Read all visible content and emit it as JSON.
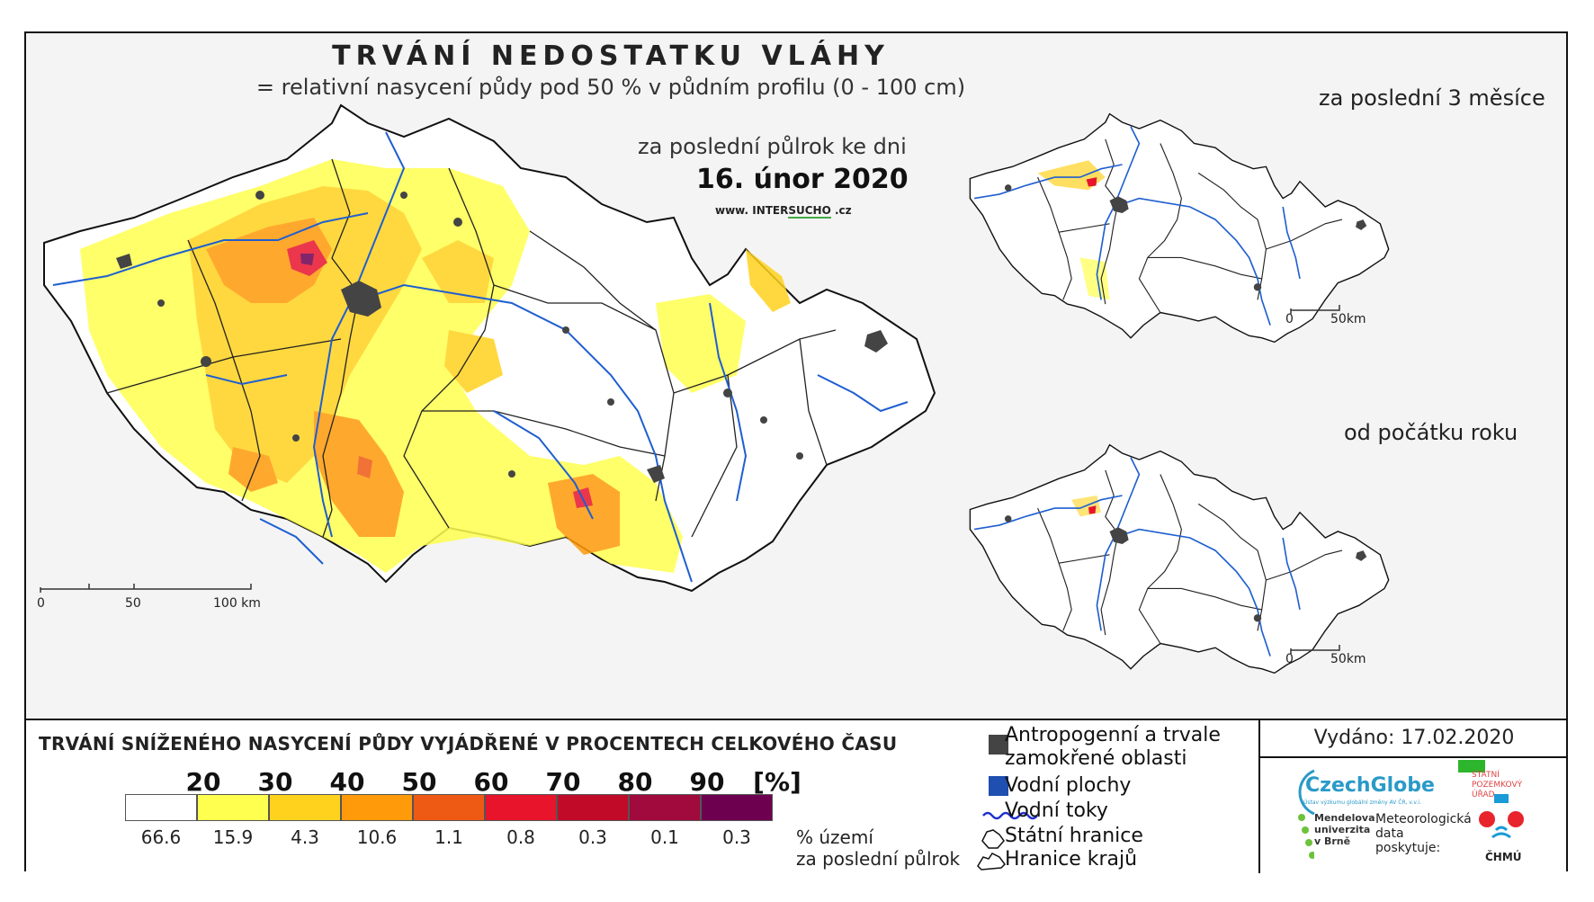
{
  "title": "TRVÁNÍ NEDOSTATKU VLÁHY",
  "subtitle": "= relativní nasycení půdy pod 50 % v půdním profilu (0 - 100 cm)",
  "period_label": "za poslední půlrok ke dni",
  "date": "16. únor 2020",
  "website": {
    "prefix": "www. INTER",
    "brand": "SUCHO",
    "suffix": " .cz"
  },
  "inset_3m_title": "za poslední 3 měsíce",
  "inset_ytd_title": "od počátku roku",
  "scale_main": [
    "0",
    "50",
    "100 km"
  ],
  "scale_inset": [
    "0",
    "50km"
  ],
  "legend": {
    "title": "TRVÁNÍ SNÍŽENÉHO NASYCENÍ PŮDY VYJÁDŘENÉ V PROCENTECH CELKOVÉHO ČASU",
    "ticks": [
      "20",
      "30",
      "40",
      "50",
      "60",
      "70",
      "80",
      "90",
      "[%]"
    ],
    "classes": [
      {
        "color": "#ffffff",
        "pct": "66.6"
      },
      {
        "color": "#ffff50",
        "pct": "15.9"
      },
      {
        "color": "#ffd21e",
        "pct": "4.3"
      },
      {
        "color": "#ff9a0a",
        "pct": "10.6"
      },
      {
        "color": "#ee5a14",
        "pct": "1.1"
      },
      {
        "color": "#e8142c",
        "pct": "0.8"
      },
      {
        "color": "#c00a28",
        "pct": "0.3"
      },
      {
        "color": "#a00a3c",
        "pct": "0.1"
      },
      {
        "color": "#6e0050",
        "pct": "0.3"
      }
    ],
    "pct_label_1": "% území",
    "pct_label_2": "za poslední půlrok"
  },
  "key": {
    "anthropogenic_1": "Antropogenní a trvale",
    "anthropogenic_2": "zamokřené oblasti",
    "water_bodies": "Vodní plochy",
    "rivers": "Vodní toky",
    "state_border": "Státní hranice",
    "region_border": "Hranice krajů"
  },
  "issued": "Vydáno: 17.02.2020",
  "logos": {
    "czechglobe": "CzechGlobe",
    "czechglobe_sub": "Ústav výzkumu globální změny AV ČR, v.v.i.",
    "spu": [
      "STÁTNÍ",
      "POZEMKOVÝ",
      "ÚŘAD"
    ],
    "mendel": [
      "Mendelova",
      "univerzita",
      "v Brně"
    ],
    "meteo": [
      "Meteorologická",
      "data",
      "poskytuje:"
    ],
    "chmu": "ČHMÚ"
  },
  "colors": {
    "water": "#1f5fd0",
    "urban": "#444444",
    "border": "#111111"
  }
}
